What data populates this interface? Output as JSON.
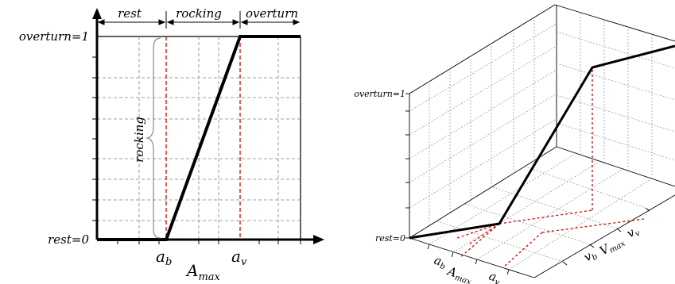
{
  "left": {
    "top_labels": {
      "rest": "rest",
      "rocking": "rocking",
      "overturn": "overturn"
    },
    "y_labels": {
      "overturn": "overturn=1",
      "rest": "rest=0"
    },
    "side_label": "rocking",
    "x_labels": {
      "a_b": "a",
      "a_b_sub": "b",
      "a_v": "a",
      "a_v_sub": "v"
    },
    "axis_label": "A",
    "axis_label_sub": "max"
  },
  "right": {
    "y_labels": {
      "overturn": "overturn=1",
      "rest": "rest=0"
    },
    "x_labels": {
      "a_b": "a",
      "a_b_sub": "b",
      "a_v": "a",
      "a_v_sub": "v",
      "axis": "A",
      "axis_sub": "max"
    },
    "depth_labels": {
      "v_b": "v",
      "v_b_sub": "b",
      "v_v": "v",
      "v_v_sub": "v",
      "axis": "V",
      "axis_sub": "max"
    }
  },
  "colors": {
    "line": "#000000",
    "grid": "#808080",
    "threshold": "#e00000"
  }
}
